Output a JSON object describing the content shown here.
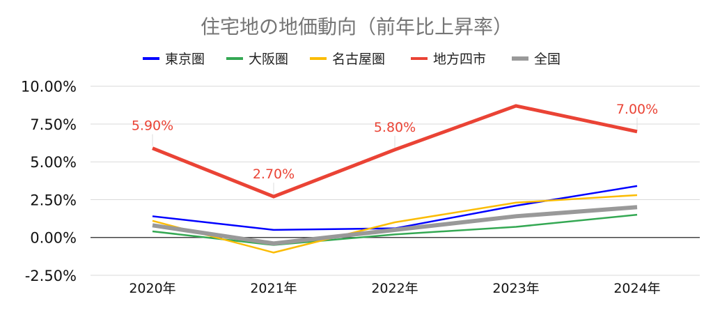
{
  "chart_data": {
    "type": "line",
    "title": "住宅地の地価動向（前年比上昇率）",
    "xlabel": "",
    "ylabel": "",
    "categories": [
      "2020年",
      "2021年",
      "2022年",
      "2023年",
      "2024年"
    ],
    "ylim": [
      -2.5,
      10
    ],
    "yticks": [
      "10.00%",
      "7.50%",
      "5.00%",
      "2.50%",
      "0.00%",
      "-2.50%"
    ],
    "ytick_values": [
      10,
      7.5,
      5,
      2.5,
      0,
      -2.5
    ],
    "grid": true,
    "legend_position": "top",
    "series": [
      {
        "name": "東京圏",
        "color": "#0000ff",
        "values": [
          1.4,
          0.5,
          0.6,
          2.1,
          3.4
        ]
      },
      {
        "name": "大阪圏",
        "color": "#34a853",
        "values": [
          0.4,
          -0.5,
          0.2,
          0.7,
          1.5
        ]
      },
      {
        "name": "名古屋圏",
        "color": "#fbbc04",
        "values": [
          1.1,
          -1.0,
          1.0,
          2.3,
          2.8
        ]
      },
      {
        "name": "地方四市",
        "color": "#ea4335",
        "values": [
          5.9,
          2.7,
          5.8,
          8.7,
          7.0
        ],
        "data_labels": [
          "5.90%",
          "2.70%",
          "5.80%",
          "",
          "7.00%"
        ]
      },
      {
        "name": "全国",
        "color": "#999999",
        "values": [
          0.8,
          -0.4,
          0.5,
          1.4,
          2.0
        ]
      }
    ]
  }
}
